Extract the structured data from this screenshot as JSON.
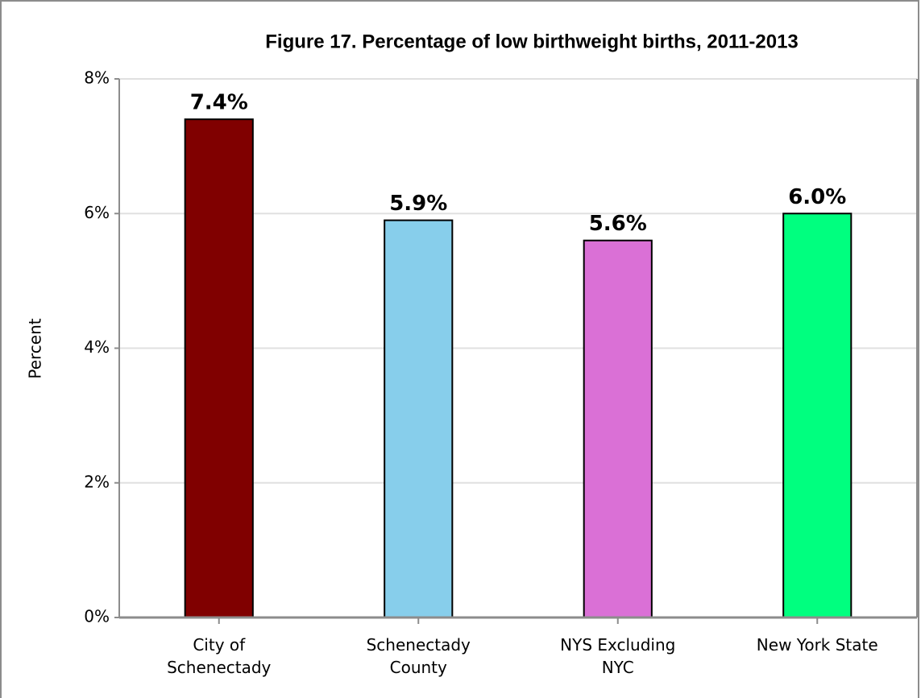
{
  "chart_data": {
    "type": "bar",
    "title": "Figure 17. Percentage of low birthweight births, 2011-2013",
    "y_label": "Percent",
    "categories": [
      "City of Schenectady",
      "Schenectady County",
      "NYS Excluding NYC",
      "New York State"
    ],
    "values": [
      7.4,
      5.9,
      5.6,
      6.0
    ],
    "value_labels": [
      "7.4%",
      "5.9%",
      "5.6%",
      "6.0%"
    ],
    "colors": [
      "#800000",
      "#87ceeb",
      "#da70d6",
      "#00ff7f"
    ],
    "ylim": [
      0,
      8
    ],
    "yticks": [
      {
        "value": 0,
        "label": "0%"
      },
      {
        "value": 2,
        "label": "2%"
      },
      {
        "value": 4,
        "label": "4%"
      },
      {
        "value": 6,
        "label": "6%"
      },
      {
        "value": 8,
        "label": "8%"
      }
    ],
    "grid": true
  }
}
